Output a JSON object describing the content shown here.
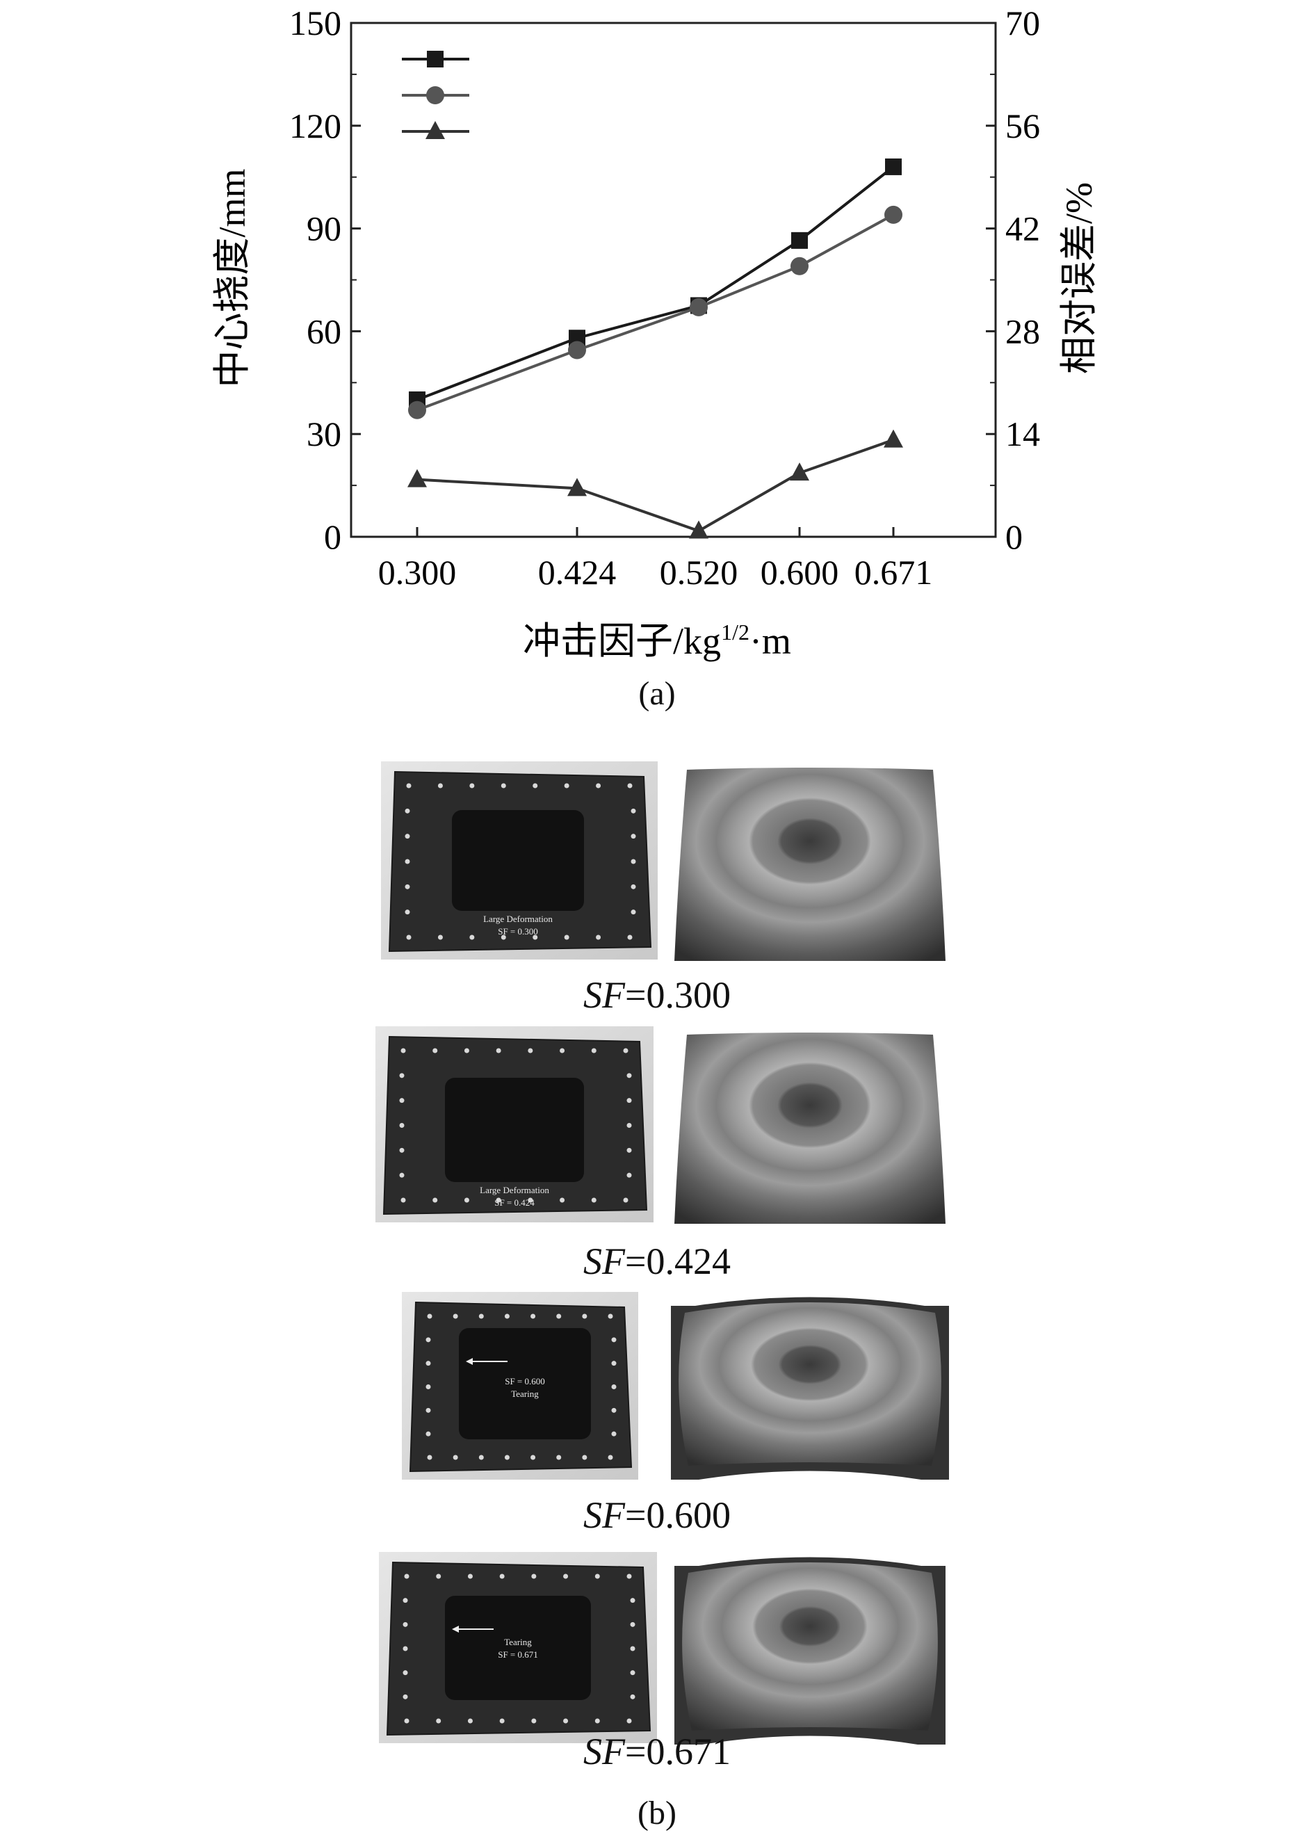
{
  "chart_data": {
    "type": "line",
    "xlabel": "冲击因子/kg",
    "xlabel_sup": "1/2",
    "xlabel_suffix": "·m",
    "ylabel_left": "中心挠度/mm",
    "ylabel_right": "相对误差/%",
    "categories": [
      "0.300",
      "0.424",
      "0.520",
      "0.600",
      "0.671"
    ],
    "ylim_left": [
      0,
      150
    ],
    "ylim_right": [
      0,
      70
    ],
    "yticks_left": [
      "0",
      "30",
      "60",
      "90",
      "120",
      "150"
    ],
    "yticks_right": [
      "0",
      "14",
      "28",
      "42",
      "56",
      "70"
    ],
    "legend_position": "top-left",
    "grid": false,
    "series": [
      {
        "axis": "left",
        "marker": "square",
        "color": "#1a1a1a",
        "values": [
          40,
          58,
          67.5,
          86.5,
          108
        ]
      },
      {
        "axis": "left",
        "marker": "circle",
        "color": "#555555",
        "values": [
          37,
          54.5,
          67,
          79,
          94
        ]
      },
      {
        "axis": "right",
        "marker": "triangle",
        "color": "#333333",
        "values": [
          7.8,
          6.6,
          0.8,
          8.7,
          13.2
        ]
      }
    ]
  },
  "panel_a_label": "(a)",
  "panel_b_label": "(b)",
  "panel_b_rows": [
    {
      "sf_label": "SF",
      "sf_value": "=0.300",
      "photo_text": [
        "Large Deformation",
        "SF = 0.300"
      ]
    },
    {
      "sf_label": "SF",
      "sf_value": "=0.424",
      "photo_text": [
        "Large Deformation",
        "SF = 0.424"
      ]
    },
    {
      "sf_label": "SF",
      "sf_value": "=0.600",
      "photo_text": [
        "SF = 0.600",
        "Tearing"
      ]
    },
    {
      "sf_label": "SF",
      "sf_value": "=0.671",
      "photo_text": [
        "Tearing",
        "SF = 0.671"
      ]
    }
  ]
}
